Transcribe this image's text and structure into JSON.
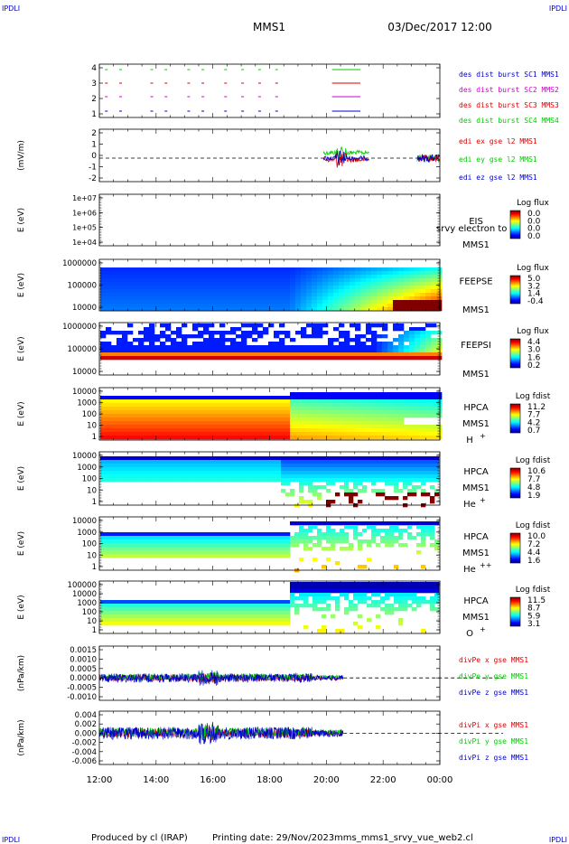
{
  "header": {
    "corner_tl": "IPDLI",
    "corner_tr": "IPDLI",
    "corner_bl": "IPDLI",
    "corner_br": "IPDLI",
    "title": "MMS1",
    "datetime": "03/Dec/2017 12:00"
  },
  "footer": {
    "produced": "Produced by cl (IRAP)",
    "printing": "Printing date: 29/Nov/2023",
    "file": "mms_mms1_srvy_vue_web2.cl"
  },
  "colors": {
    "red": "#dd0000",
    "green": "#00cc00",
    "blue": "#0000cc",
    "magenta": "#cc00cc"
  },
  "chart_data": {
    "type": "stacked time-series panels",
    "x_ticks": [
      "12:00",
      "14:00",
      "16:00",
      "18:00",
      "20:00",
      "22:00",
      "00:00"
    ],
    "xlim_hours": [
      12,
      24
    ],
    "panels": [
      {
        "id": "burst",
        "type": "scatter",
        "yticks": [
          "4",
          "3",
          "2",
          "1"
        ],
        "legend": [
          {
            "text": "des dist burst SC1 MMS1",
            "color": "#0000cc"
          },
          {
            "text": "des dist burst SC2 MMS2",
            "color": "#cc00cc"
          },
          {
            "text": "des dist burst SC3 MMS3",
            "color": "#dd0000"
          },
          {
            "text": "des dist burst SC4 MMS4",
            "color": "#00cc00"
          }
        ]
      },
      {
        "id": "edi",
        "type": "line",
        "ylabel": "(mV/m)",
        "yticks": [
          "2",
          "1",
          "0",
          "-1",
          "-2"
        ],
        "legend": [
          {
            "text": "edi ex gse l2 MMS1",
            "color": "#dd0000"
          },
          {
            "text": "edi ey gse l2 MMS1",
            "color": "#00cc00"
          },
          {
            "text": "edi ez gse l2 MMS1",
            "color": "#0000cc"
          }
        ]
      },
      {
        "id": "eis",
        "type": "heatmap",
        "ylabel": "E (eV)",
        "yticks": [
          "1e+07",
          "1e+06",
          "1e+05",
          "1e+04"
        ],
        "labels": [
          "EIS",
          "MMS1"
        ],
        "overlay": "srvy electron to",
        "colorbar_title": "Log flux",
        "colorbar_ticks": [
          "0.0",
          "0.0",
          "0.0",
          "0.0"
        ]
      },
      {
        "id": "feepse",
        "type": "heatmap",
        "ylabel": "E (eV)",
        "yticks": [
          "1000000",
          "100000",
          "10000"
        ],
        "labels": [
          "FEEPSE",
          "MMS1"
        ],
        "colorbar_title": "Log flux",
        "colorbar_ticks": [
          "5.0",
          "3.2",
          "1.4",
          "-0.4"
        ]
      },
      {
        "id": "feepsi",
        "type": "heatmap",
        "ylabel": "E (eV)",
        "yticks": [
          "1000000",
          "100000",
          "10000"
        ],
        "labels": [
          "FEEPSI",
          "MMS1"
        ],
        "colorbar_title": "Log flux",
        "colorbar_ticks": [
          "4.4",
          "3.0",
          "1.6",
          "0.2"
        ]
      },
      {
        "id": "hpca_h",
        "type": "heatmap",
        "ylabel": "E (eV)",
        "yticks": [
          "10000",
          "1000",
          "100",
          "10",
          "1"
        ],
        "labels": [
          "HPCA",
          "MMS1",
          "H"
        ],
        "species_sup": "+",
        "colorbar_title": "Log fdist",
        "colorbar_ticks": [
          "11.2",
          "7.7",
          "4.2",
          "0.7"
        ]
      },
      {
        "id": "hpca_he",
        "type": "heatmap",
        "ylabel": "E (eV)",
        "yticks": [
          "10000",
          "1000",
          "100",
          "10",
          "1"
        ],
        "labels": [
          "HPCA",
          "MMS1",
          "He"
        ],
        "species_sup": "+",
        "colorbar_title": "Log fdist",
        "colorbar_ticks": [
          "10.6",
          "7.7",
          "4.8",
          "1.9"
        ]
      },
      {
        "id": "hpca_hepp",
        "type": "heatmap",
        "ylabel": "E (eV)",
        "yticks": [
          "10000",
          "1000",
          "100",
          "10",
          "1"
        ],
        "labels": [
          "HPCA",
          "MMS1",
          "He"
        ],
        "species_sup": "++",
        "colorbar_title": "Log fdist",
        "colorbar_ticks": [
          "10.0",
          "7.2",
          "4.4",
          "1.6"
        ]
      },
      {
        "id": "hpca_o",
        "type": "heatmap",
        "ylabel": "E (eV)",
        "yticks": [
          "100000",
          "10000",
          "1000",
          "100",
          "10",
          "1"
        ],
        "labels": [
          "HPCA",
          "MMS1",
          "O"
        ],
        "species_sup": "+",
        "colorbar_title": "Log fdist",
        "colorbar_ticks": [
          "11.5",
          "8.7",
          "5.9",
          "3.1"
        ]
      },
      {
        "id": "divpe",
        "type": "line",
        "ylabel": "(nPa/km)",
        "yticks": [
          "0.0015",
          "0.0010",
          "0.0005",
          "0.0000",
          "-0.0005",
          "-0.0010"
        ],
        "legend": [
          {
            "text": "divPe x gse MMS1",
            "color": "#dd0000"
          },
          {
            "text": "divPe y gse MMS1",
            "color": "#00cc00"
          },
          {
            "text": "divPe z gse MMS1",
            "color": "#0000cc"
          }
        ]
      },
      {
        "id": "divpi",
        "type": "line",
        "ylabel": "(nPa/km)",
        "yticks": [
          "0.004",
          "0.002",
          "0.000",
          "-0.002",
          "-0.004",
          "-0.006"
        ],
        "legend": [
          {
            "text": "divPi x gse MMS1",
            "color": "#dd0000"
          },
          {
            "text": "divPi y gse MMS1",
            "color": "#00cc00"
          },
          {
            "text": "divPi z gse MMS1",
            "color": "#0000cc"
          }
        ]
      }
    ]
  }
}
